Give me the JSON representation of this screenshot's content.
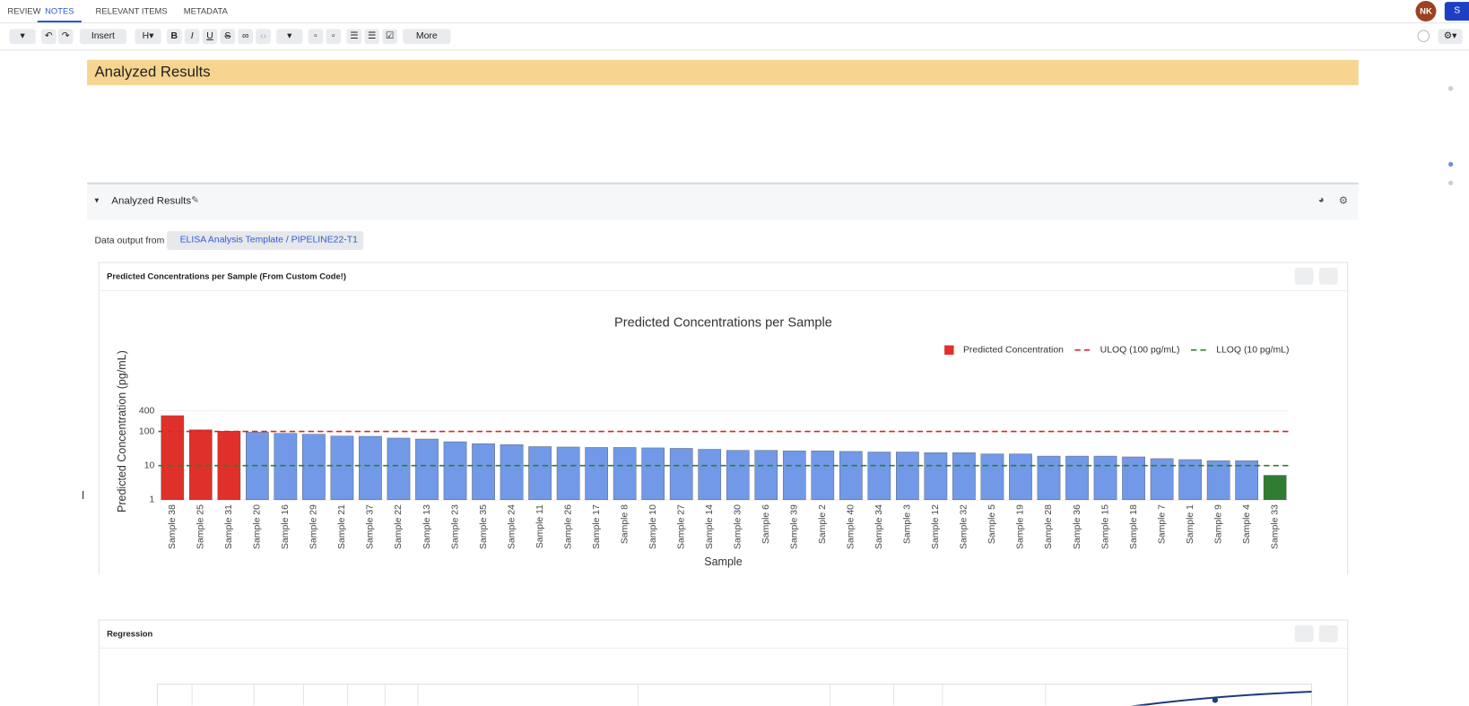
{
  "tabs": [
    "REVIEW",
    "NOTES",
    "RELEVANT ITEMS",
    "METADATA"
  ],
  "active_tab": 1,
  "user_initials": "NK",
  "share_button": "S",
  "toolbar": {
    "insert": "Insert",
    "more": "More",
    "bold": "B",
    "italic": "I",
    "underline": "U",
    "strike": "S"
  },
  "banner_title": "Analyzed Results",
  "section_title": "Analyzed Results",
  "data_output_label": "Data output from",
  "data_output_link": "ELISA Analysis Template / PIPELINE22-T1",
  "cards": [
    {
      "title": "Predicted Concentrations per Sample (From Custom Code!)"
    },
    {
      "title": "Regression"
    }
  ],
  "chart_data": {
    "type": "bar",
    "title": "Predicted Concentrations per Sample",
    "x_label": "Sample",
    "y_label": "Predicted Concentration (pg/mL)",
    "log_y": true,
    "ylim": [
      1,
      400
    ],
    "yticks": [
      1,
      10,
      100,
      400
    ],
    "grid": true,
    "legend": "top-right",
    "categories": [
      "Sample 38",
      "Sample 25",
      "Sample 31",
      "Sample 20",
      "Sample 16",
      "Sample 29",
      "Sample 21",
      "Sample 37",
      "Sample 22",
      "Sample 13",
      "Sample 23",
      "Sample 35",
      "Sample 24",
      "Sample 11",
      "Sample 26",
      "Sample 17",
      "Sample 8",
      "Sample 10",
      "Sample 27",
      "Sample 14",
      "Sample 30",
      "Sample 6",
      "Sample 39",
      "Sample 2",
      "Sample 40",
      "Sample 34",
      "Sample 3",
      "Sample 12",
      "Sample 32",
      "Sample 5",
      "Sample 19",
      "Sample 28",
      "Sample 36",
      "Sample 15",
      "Sample 18",
      "Sample 7",
      "Sample 1",
      "Sample 9",
      "Sample 4",
      "Sample 33"
    ],
    "series": [
      {
        "name": "Predicted Concentration",
        "color": "#e0302a",
        "values": [
          290,
          112,
          102,
          95,
          88,
          83,
          73,
          72,
          64,
          60,
          50,
          44,
          41,
          36,
          35,
          34,
          34,
          33,
          32,
          30,
          28,
          28,
          27,
          27,
          26,
          25,
          25,
          24,
          24,
          22,
          22,
          19,
          19,
          19,
          18,
          16,
          15,
          14,
          14,
          5.2
        ],
        "colors": [
          "#e0302a",
          "#e0302a",
          "#e0302a",
          "#7199e8",
          "#7199e8",
          "#7199e8",
          "#7199e8",
          "#7199e8",
          "#7199e8",
          "#7199e8",
          "#7199e8",
          "#7199e8",
          "#7199e8",
          "#7199e8",
          "#7199e8",
          "#7199e8",
          "#7199e8",
          "#7199e8",
          "#7199e8",
          "#7199e8",
          "#7199e8",
          "#7199e8",
          "#7199e8",
          "#7199e8",
          "#7199e8",
          "#7199e8",
          "#7199e8",
          "#7199e8",
          "#7199e8",
          "#7199e8",
          "#7199e8",
          "#7199e8",
          "#7199e8",
          "#7199e8",
          "#7199e8",
          "#7199e8",
          "#7199e8",
          "#7199e8",
          "#7199e8",
          "#2e7d32"
        ]
      }
    ],
    "reference_lines": [
      {
        "name": "ULOQ (100 pg/mL)",
        "value": 100,
        "color": "#d62728"
      },
      {
        "name": "LLOQ (10 pg/mL)",
        "value": 10,
        "color": "#2e7d32"
      }
    ]
  }
}
